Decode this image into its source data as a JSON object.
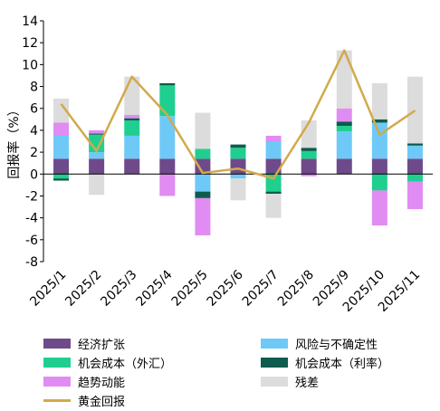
{
  "chart_data": {
    "type": "bar",
    "stacked": true,
    "categories": [
      "2025/1",
      "2025/2",
      "2025/3",
      "2025/4",
      "2025/5",
      "2025/6",
      "2025/7",
      "2025/8",
      "2025/9",
      "2025/10",
      "2025/11"
    ],
    "ylabel": "回报率（%）",
    "ylim": [
      -8,
      14
    ],
    "yticks": [
      -8,
      -6,
      -4,
      -2,
      0,
      2,
      4,
      6,
      8,
      10,
      12,
      14
    ],
    "series": [
      {
        "name": "经济扩张",
        "color": "#6e4a8a",
        "values": [
          1.4,
          1.4,
          1.4,
          1.4,
          1.4,
          1.4,
          1.4,
          1.4,
          1.4,
          1.4,
          1.4
        ]
      },
      {
        "name": "风险与不确定性",
        "color": "#6ec9f7",
        "values": [
          2.1,
          0.6,
          2.1,
          3.9,
          -1.6,
          -0.4,
          1.6,
          0.0,
          2.5,
          3.3,
          1.2
        ]
      },
      {
        "name": "机会成本（外汇）",
        "color": "#1fcf90",
        "values": [
          -0.4,
          1.6,
          1.4,
          2.8,
          0.9,
          1.0,
          -1.6,
          0.7,
          0.5,
          -1.5,
          -0.7
        ]
      },
      {
        "name": "机会成本（利率）",
        "color": "#0d5c4e",
        "values": [
          -0.2,
          0.1,
          0.2,
          0.2,
          -0.6,
          0.3,
          -0.2,
          0.3,
          0.4,
          0.3,
          0.2
        ]
      },
      {
        "name": "趋势动能",
        "color": "#e08cf2",
        "values": [
          1.2,
          0.3,
          0.3,
          -2.0,
          -3.4,
          0.0,
          0.5,
          -0.2,
          1.2,
          -3.2,
          -2.5
        ]
      },
      {
        "name": "残差",
        "color": "#dcdcdc",
        "values": [
          2.2,
          -1.9,
          3.5,
          0.0,
          3.3,
          -2.0,
          -2.2,
          2.5,
          5.3,
          3.3,
          6.1
        ]
      }
    ],
    "line": {
      "name": "黄金回报",
      "color": "#d2aa4b",
      "values": [
        6.4,
        2.1,
        8.9,
        5.4,
        0.1,
        0.5,
        -0.4,
        4.7,
        11.3,
        3.6,
        5.8
      ]
    },
    "legend_position": "bottom",
    "grid": false
  },
  "legend": {
    "items": [
      {
        "label": "经济扩张",
        "color": "#6e4a8a",
        "kind": "bar"
      },
      {
        "label": "风险与不确定性",
        "color": "#6ec9f7",
        "kind": "bar"
      },
      {
        "label": "机会成本（外汇）",
        "color": "#1fcf90",
        "kind": "bar"
      },
      {
        "label": "机会成本（利率）",
        "color": "#0d5c4e",
        "kind": "bar"
      },
      {
        "label": "趋势动能",
        "color": "#e08cf2",
        "kind": "bar"
      },
      {
        "label": "残差",
        "color": "#dcdcdc",
        "kind": "bar"
      },
      {
        "label": "黄金回报",
        "color": "#d2aa4b",
        "kind": "line"
      }
    ]
  }
}
